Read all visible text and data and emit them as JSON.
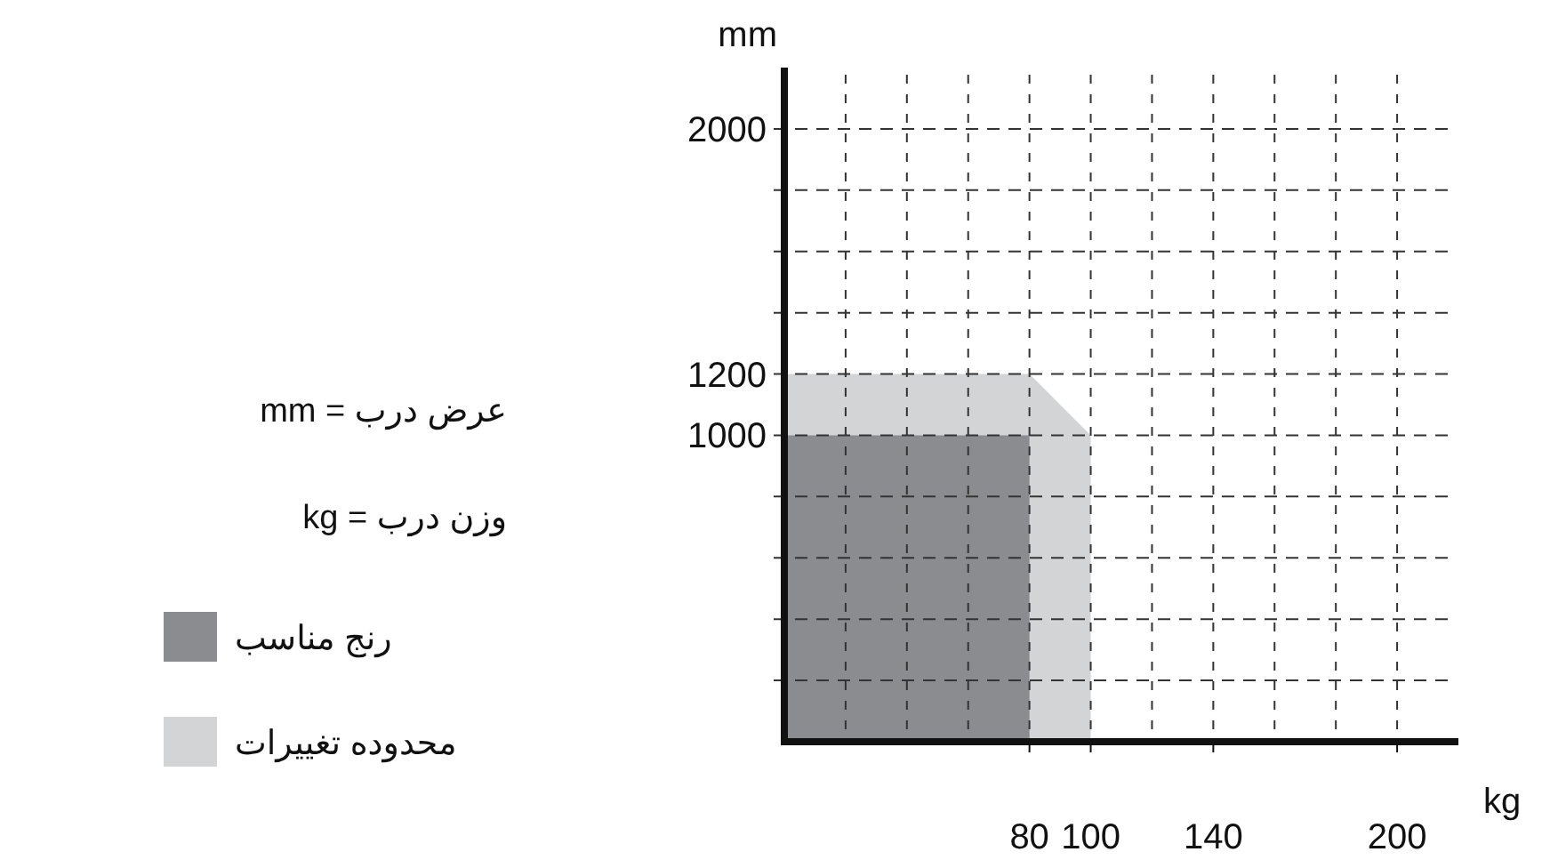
{
  "chart_data": {
    "type": "area",
    "xlabel": "kg",
    "ylabel": "mm",
    "xlim": [
      0,
      220
    ],
    "ylim": [
      0,
      2200
    ],
    "xticks": [
      {
        "value": 20,
        "label": null
      },
      {
        "value": 40,
        "label": null
      },
      {
        "value": 60,
        "label": null
      },
      80,
      100,
      {
        "value": 120,
        "label": null
      },
      140,
      {
        "value": 160,
        "label": null
      },
      {
        "value": 180,
        "label": null
      },
      200
    ],
    "yticks": [
      {
        "value": 200,
        "label": null
      },
      {
        "value": 400,
        "label": null
      },
      {
        "value": 600,
        "label": null
      },
      {
        "value": 800,
        "label": null
      },
      1000,
      1200,
      {
        "value": 1400,
        "label": null
      },
      {
        "value": 1600,
        "label": null
      },
      {
        "value": 1800,
        "label": null
      },
      2000
    ],
    "grid": true,
    "legend": "left",
    "series": [
      {
        "name": "رنج مناسب",
        "color": "#8a8c8f",
        "x": [
          0,
          80,
          80
        ],
        "values": [
          1000,
          1000,
          0
        ]
      },
      {
        "name": "محدوده تغییرات",
        "color": "#d2d4d6",
        "x": [
          0,
          80,
          100,
          100
        ],
        "values": [
          1200,
          1200,
          1000,
          0
        ]
      }
    ],
    "annotations": [
      "عرض درب = mm",
      "وزن درب = kg"
    ]
  }
}
